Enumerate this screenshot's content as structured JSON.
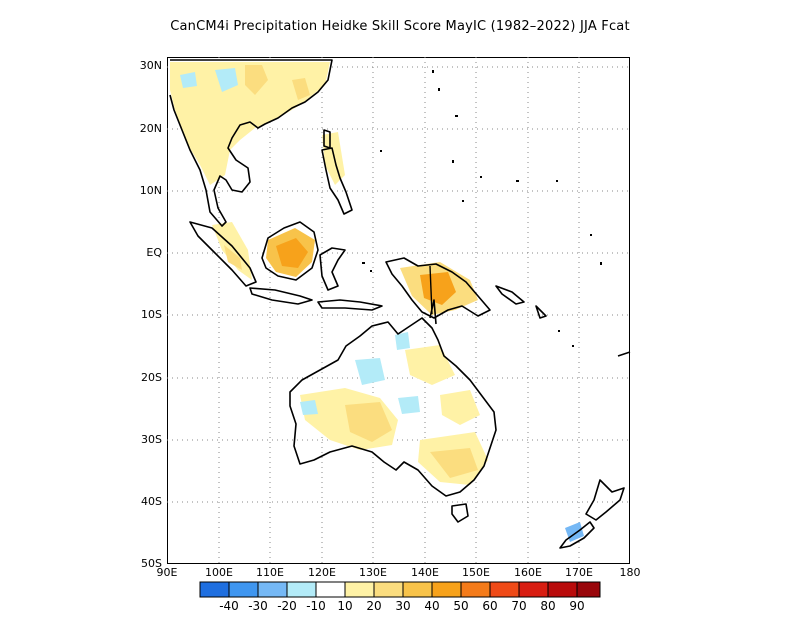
{
  "title": "CanCM4i  Precipitation Heidke Skill Score MayIC (1982–2022) JJA Fcat",
  "y_axis": [
    "30N",
    "20N",
    "10N",
    "EQ",
    "10S",
    "20S",
    "30S",
    "40S",
    "50S"
  ],
  "x_axis": [
    "90E",
    "100E",
    "110E",
    "120E",
    "130E",
    "140E",
    "150E",
    "160E",
    "170E",
    "180"
  ],
  "colorbar": {
    "labels": [
      "-40",
      "-30",
      "-20",
      "-10",
      "10",
      "20",
      "30",
      "40",
      "50",
      "60",
      "70",
      "80",
      "90"
    ],
    "colors": [
      "#1f6fe0",
      "#3f96f0",
      "#75b8f5",
      "#b3ebf8",
      "#ffffff",
      "#fff2a6",
      "#fbdd7f",
      "#f8c34a",
      "#f7a21b",
      "#f47b1a",
      "#ef4a17",
      "#d81d11",
      "#b90b0b",
      "#99060b"
    ]
  }
}
